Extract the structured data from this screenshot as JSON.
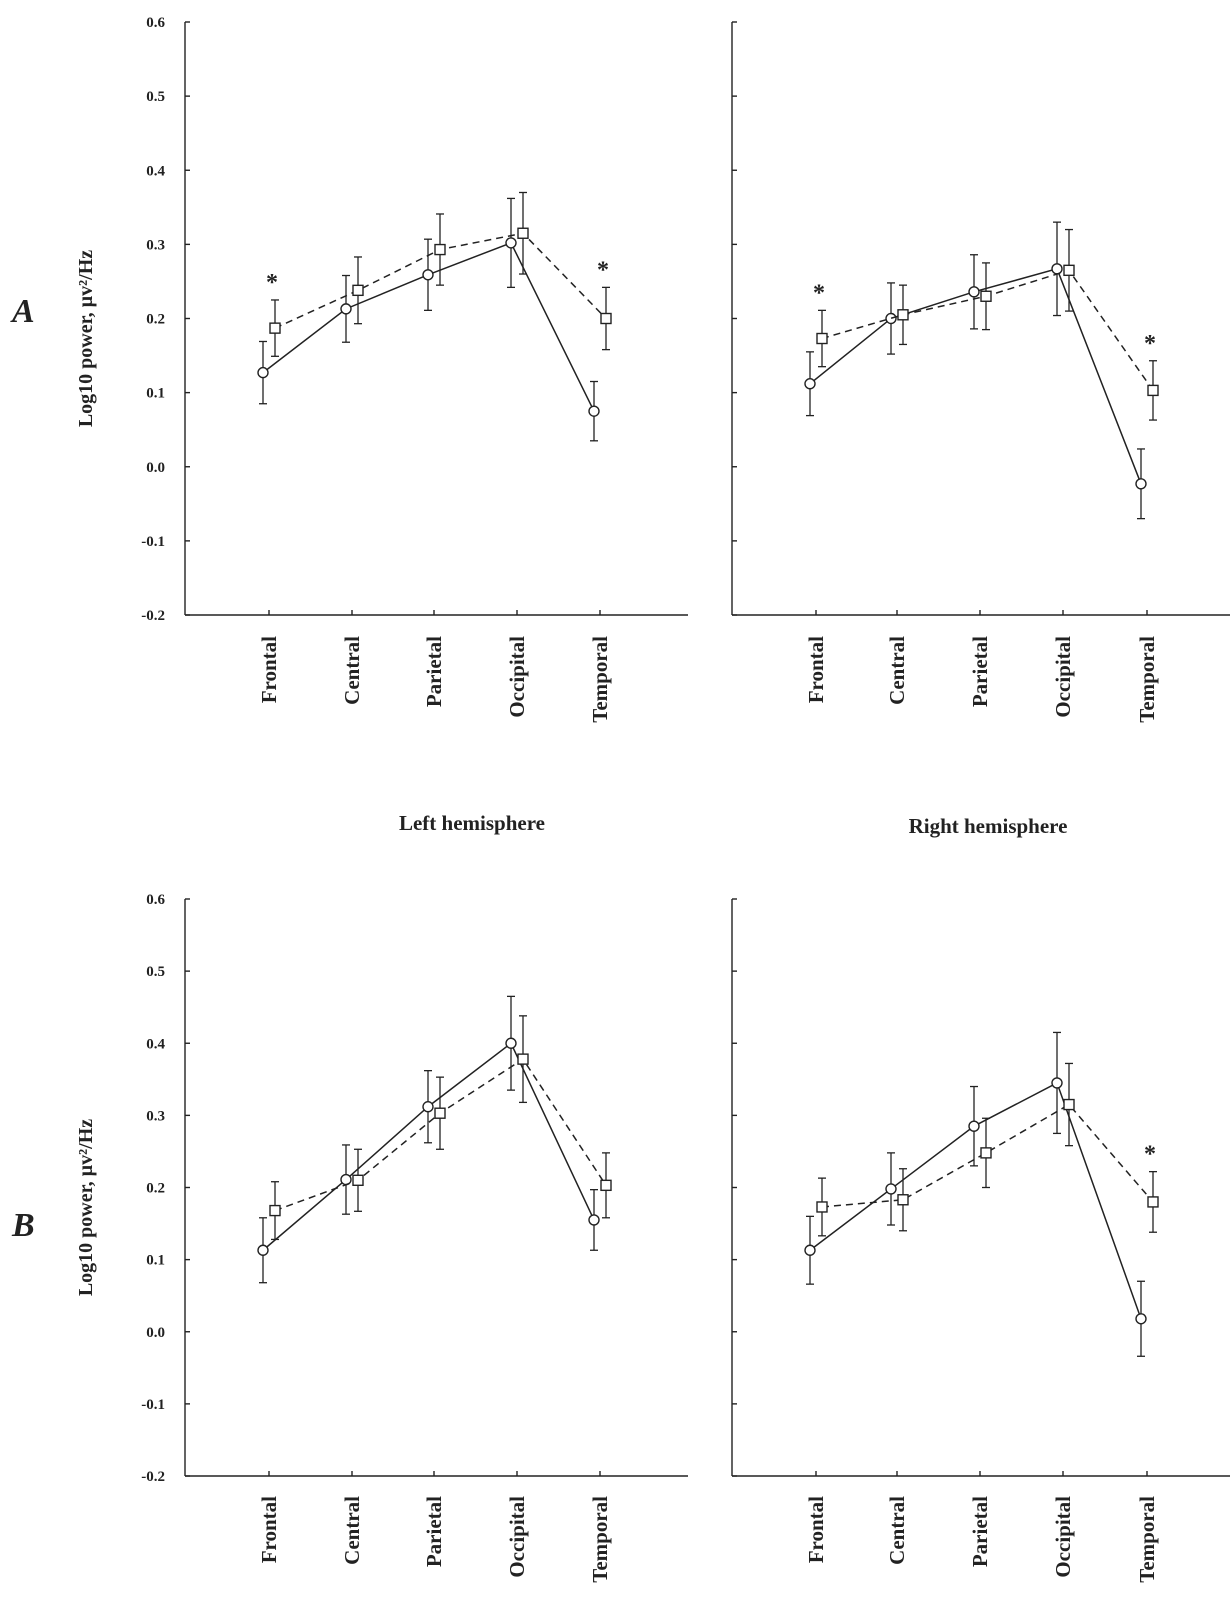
{
  "figure": {
    "panel_letters": [
      "A",
      "B"
    ],
    "hemisphere_labels": [
      "Left hemisphere",
      "Right hemisphere"
    ],
    "ylabel": "Log10 power, µv²/Hz",
    "colors": {
      "ink": "#222222",
      "background": "#ffffff"
    }
  },
  "chart_data": [
    {
      "type": "line",
      "panel": "A",
      "hemisphere": "Left hemisphere",
      "categories": [
        "Frontal",
        "Central",
        "Parietal",
        "Occipital",
        "Temporal"
      ],
      "ylabel": "Log10 power, µv²/Hz",
      "ylim": [
        -0.2,
        0.6
      ],
      "yticks": [
        "0.6",
        "0.5",
        "0.4",
        "0.3",
        "0.2",
        "0.1",
        "0.0",
        "-0.1",
        "-0.2"
      ],
      "grid": false,
      "show_yticks": true,
      "series": [
        {
          "marker": "circle",
          "line": "solid",
          "values": [
            0.127,
            0.213,
            0.259,
            0.302,
            0.075
          ],
          "errors": [
            0.042,
            0.045,
            0.048,
            0.06,
            0.04
          ]
        },
        {
          "marker": "square",
          "line": "dashed",
          "values": [
            0.187,
            0.238,
            0.293,
            0.315,
            0.2
          ],
          "errors": [
            0.038,
            0.045,
            0.048,
            0.055,
            0.042
          ]
        }
      ],
      "annotations": [
        {
          "category": "Frontal",
          "text": "*"
        },
        {
          "category": "Temporal",
          "text": "*"
        }
      ]
    },
    {
      "type": "line",
      "panel": "A",
      "hemisphere": "Right hemisphere",
      "categories": [
        "Frontal",
        "Central",
        "Parietal",
        "Occipital",
        "Temporal"
      ],
      "ylim": [
        -0.2,
        0.6
      ],
      "grid": false,
      "show_yticks": false,
      "series": [
        {
          "marker": "circle",
          "line": "solid",
          "values": [
            0.112,
            0.2,
            0.236,
            0.267,
            -0.023
          ],
          "errors": [
            0.043,
            0.048,
            0.05,
            0.063,
            0.047
          ]
        },
        {
          "marker": "square",
          "line": "dashed",
          "values": [
            0.173,
            0.205,
            0.23,
            0.265,
            0.103
          ],
          "errors": [
            0.038,
            0.04,
            0.045,
            0.055,
            0.04
          ]
        }
      ],
      "annotations": [
        {
          "category": "Frontal",
          "text": "*"
        },
        {
          "category": "Temporal",
          "text": "*"
        }
      ]
    },
    {
      "type": "line",
      "panel": "B",
      "hemisphere": "Left hemisphere",
      "categories": [
        "Frontal",
        "Central",
        "Parietal",
        "Occipital",
        "Temporal"
      ],
      "ylabel": "Log10 power, µv²/Hz",
      "ylim": [
        -0.2,
        0.6
      ],
      "yticks": [
        "0.6",
        "0.5",
        "0.4",
        "0.3",
        "0.2",
        "0.1",
        "0.0",
        "-0.1",
        "-0.2"
      ],
      "grid": false,
      "show_yticks": true,
      "series": [
        {
          "marker": "circle",
          "line": "solid",
          "values": [
            0.113,
            0.211,
            0.312,
            0.4,
            0.155
          ],
          "errors": [
            0.045,
            0.048,
            0.05,
            0.065,
            0.042
          ]
        },
        {
          "marker": "square",
          "line": "dashed",
          "values": [
            0.168,
            0.21,
            0.303,
            0.378,
            0.203
          ],
          "errors": [
            0.04,
            0.043,
            0.05,
            0.06,
            0.045
          ]
        }
      ],
      "annotations": []
    },
    {
      "type": "line",
      "panel": "B",
      "hemisphere": "Right hemisphere",
      "categories": [
        "Frontal",
        "Central",
        "Parietal",
        "Occipital",
        "Temporal"
      ],
      "ylim": [
        -0.2,
        0.6
      ],
      "grid": false,
      "show_yticks": false,
      "series": [
        {
          "marker": "circle",
          "line": "solid",
          "values": [
            0.113,
            0.198,
            0.285,
            0.345,
            0.018
          ],
          "errors": [
            0.047,
            0.05,
            0.055,
            0.07,
            0.052
          ]
        },
        {
          "marker": "square",
          "line": "dashed",
          "values": [
            0.173,
            0.183,
            0.248,
            0.315,
            0.18
          ],
          "errors": [
            0.04,
            0.043,
            0.048,
            0.057,
            0.042
          ]
        }
      ],
      "annotations": [
        {
          "category": "Temporal",
          "text": "*"
        }
      ]
    }
  ]
}
